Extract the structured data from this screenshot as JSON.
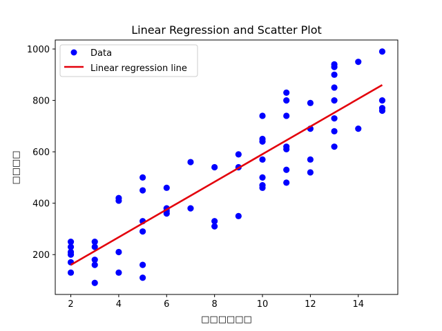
{
  "chart_data": {
    "type": "scatter",
    "title": "Linear Regression and Scatter Plot",
    "xlabel": "□□□□□□",
    "ylabel": "□□□□",
    "xlim": [
      1.35,
      15.65
    ],
    "ylim": [
      45,
      1035
    ],
    "xticks": [
      2,
      4,
      6,
      8,
      10,
      12,
      14
    ],
    "yticks": [
      200,
      400,
      600,
      800,
      1000
    ],
    "xtick_labels": [
      "2",
      "4",
      "6",
      "8",
      "10",
      "12",
      "14"
    ],
    "ytick_labels": [
      "200",
      "400",
      "600",
      "800",
      "1000"
    ],
    "grid": false,
    "legend_position": "top-left",
    "series": [
      {
        "name": "Data",
        "kind": "scatter",
        "color": "#0000ff",
        "points": [
          [
            2,
            250
          ],
          [
            2,
            230
          ],
          [
            2,
            210
          ],
          [
            2,
            200
          ],
          [
            2,
            170
          ],
          [
            2,
            130
          ],
          [
            3,
            250
          ],
          [
            3,
            230
          ],
          [
            3,
            180
          ],
          [
            3,
            160
          ],
          [
            3,
            90
          ],
          [
            4,
            420
          ],
          [
            4,
            410
          ],
          [
            4,
            210
          ],
          [
            4,
            130
          ],
          [
            5,
            500
          ],
          [
            5,
            450
          ],
          [
            5,
            330
          ],
          [
            5,
            290
          ],
          [
            5,
            160
          ],
          [
            5,
            110
          ],
          [
            6,
            460
          ],
          [
            6,
            380
          ],
          [
            6,
            370
          ],
          [
            6,
            360
          ],
          [
            7,
            560
          ],
          [
            7,
            380
          ],
          [
            8,
            540
          ],
          [
            8,
            330
          ],
          [
            8,
            310
          ],
          [
            9,
            590
          ],
          [
            9,
            540
          ],
          [
            9,
            350
          ],
          [
            10,
            740
          ],
          [
            10,
            650
          ],
          [
            10,
            640
          ],
          [
            10,
            570
          ],
          [
            10,
            500
          ],
          [
            10,
            470
          ],
          [
            10,
            460
          ],
          [
            11,
            830
          ],
          [
            11,
            800
          ],
          [
            11,
            740
          ],
          [
            11,
            620
          ],
          [
            11,
            610
          ],
          [
            11,
            530
          ],
          [
            11,
            480
          ],
          [
            12,
            790
          ],
          [
            12,
            690
          ],
          [
            12,
            570
          ],
          [
            12,
            520
          ],
          [
            13,
            940
          ],
          [
            13,
            930
          ],
          [
            13,
            900
          ],
          [
            13,
            850
          ],
          [
            13,
            800
          ],
          [
            13,
            730
          ],
          [
            13,
            680
          ],
          [
            13,
            620
          ],
          [
            14,
            950
          ],
          [
            14,
            690
          ],
          [
            15,
            990
          ],
          [
            15,
            800
          ],
          [
            15,
            770
          ],
          [
            15,
            760
          ]
        ]
      },
      {
        "name": "Linear regression line",
        "kind": "line",
        "color": "#e3000b",
        "points": [
          [
            2,
            160
          ],
          [
            15,
            860
          ]
        ]
      }
    ]
  }
}
